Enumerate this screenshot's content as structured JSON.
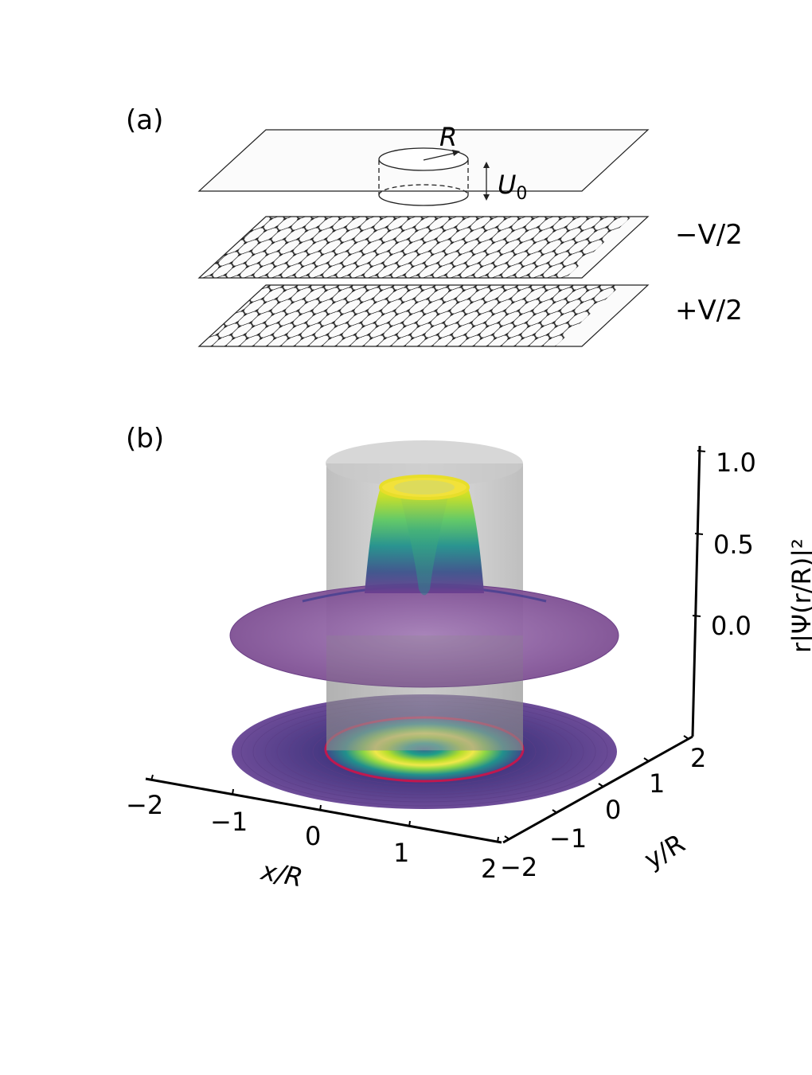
{
  "panel_a": {
    "label": "(a)",
    "radius_label": "R",
    "u0_label": "U",
    "u0_sub": "0",
    "top_layer_label": "−V/2",
    "bottom_layer_label": "+V/2"
  },
  "panel_b": {
    "label": "(b)",
    "x_ticks": [
      "−2",
      "−1",
      "0",
      "1",
      "2"
    ],
    "y_ticks": [
      "−2",
      "−1",
      "0",
      "1",
      "2"
    ],
    "z_ticks": [
      "0.0",
      "0.5",
      "1.0"
    ],
    "xlabel": "x/R",
    "ylabel": "y/R",
    "zlabel": "r|Ψ(r/R)|²"
  },
  "colors": {
    "surface_low": "#7e4f93",
    "surface_high": "#fde725",
    "cylinder": "#9a9a9a",
    "ring_edge": "#c0184f"
  }
}
